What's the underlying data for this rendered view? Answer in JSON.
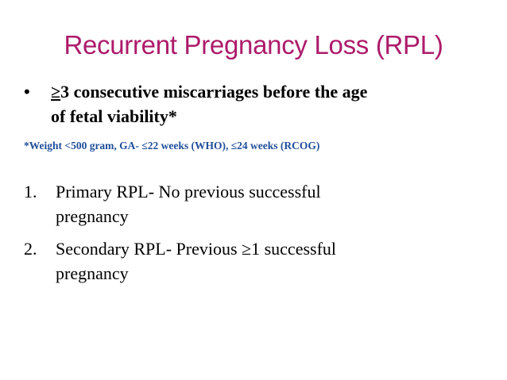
{
  "slide": {
    "title": "Recurrent Pregnancy Loss (RPL)",
    "bullet": {
      "marker": "•",
      "underlined_prefix": "≥",
      "line1_rest": "3 consecutive miscarriages before the age",
      "line2": "of fetal viability*"
    },
    "footnote": "*Weight <500 gram, GA- ≤22 weeks (WHO), ≤24 weeks (RCOG)",
    "list": [
      {
        "number": "1.",
        "line1": "Primary RPL- No previous successful",
        "line2": "pregnancy"
      },
      {
        "number": "2.",
        "line1": "Secondary RPL- Previous ≥1 successful",
        "line2": "pregnancy"
      }
    ],
    "colors": {
      "title": "#ad1b6b",
      "footnote": "#1f4e9a",
      "body_text": "#000000",
      "background": "#ffffff"
    }
  }
}
